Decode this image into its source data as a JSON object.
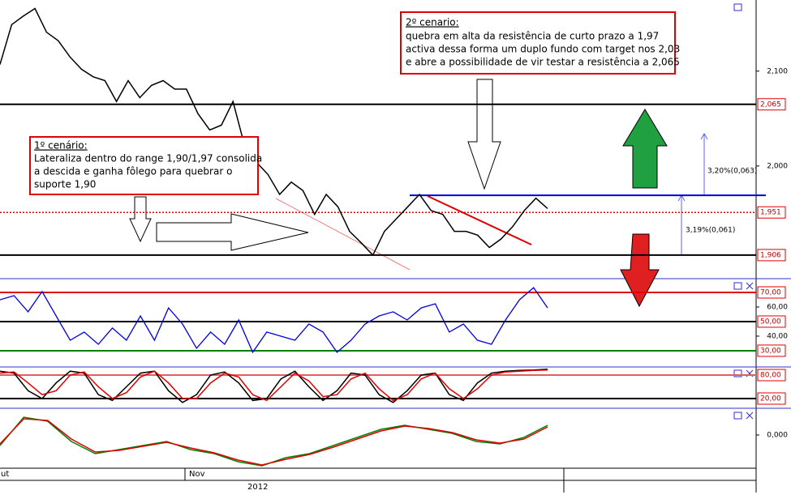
{
  "chart_data": [
    {
      "type": "line",
      "color": "#000000",
      "values": [
        2.107,
        2.149,
        2.158,
        2.166,
        2.141,
        2.132,
        2.115,
        2.102,
        2.094,
        2.09,
        2.068,
        2.09,
        2.072,
        2.085,
        2.09,
        2.081,
        2.081,
        2.055,
        2.038,
        2.043,
        2.068,
        2.021,
        2.004,
        1.991,
        1.97,
        1.983,
        1.974,
        1.949,
        1.97,
        1.957,
        1.931,
        1.919,
        1.906,
        1.931,
        1.944,
        1.957,
        1.97,
        1.953,
        1.949,
        1.931,
        1.931,
        1.927,
        1.914,
        1.923,
        1.936,
        1.953,
        1.966,
        1.955
      ],
      "ylim": [
        1.882,
        2.175
      ],
      "yticks": [
        {
          "value": 2.1,
          "label": "2,100"
        },
        {
          "value": 2.0,
          "label": "2,000"
        }
      ],
      "levels": [
        {
          "value": 2.065,
          "label": "2,065",
          "color": "#000000"
        },
        {
          "value": 1.951,
          "label": "1,951",
          "color": "#e00000"
        },
        {
          "value": 1.906,
          "label": "1,906",
          "color": "#000000"
        }
      ],
      "resistance": 1.969,
      "x_labels": [
        "ut",
        "Nov",
        "2012"
      ],
      "annotations": {
        "scenario1": {
          "title": "1º cenário:",
          "lines": [
            "Lateraliza dentro do range 1,90/1,97 consolida",
            "a descida e ganha fôlego para quebrar o",
            "suporte 1,90"
          ]
        },
        "scenario2": {
          "title": "2º cenario:",
          "lines": [
            "quebra em alta da resistência de curto prazo a 1,97",
            "activa dessa forma um duplo fundo com target nos 2,03",
            "e abre a possibilidade de vir testar a resistência a 2,065"
          ]
        },
        "measure_up": "3,20%(0,063)",
        "measure_down": "3,19%(0,061)"
      }
    },
    {
      "type": "line",
      "color": "#0000e0",
      "values": [
        65,
        67.8,
        56.7,
        70.6,
        53.9,
        37.2,
        42.8,
        34.4,
        45.6,
        37.2,
        53.9,
        37.2,
        59.4,
        48.3,
        31.7,
        42.8,
        34.4,
        51.1,
        28.9,
        42.8,
        40,
        37.2,
        48.3,
        42.8,
        28.9,
        37.2,
        48.3,
        53.9,
        56.7,
        51.1,
        59.4,
        62.2,
        42.8,
        48.3,
        37.2,
        34.4,
        51.1,
        65,
        73.3,
        59.4
      ],
      "ylim": [
        19.4,
        78.9
      ],
      "yticks": [
        {
          "value": 60,
          "label": "60,00"
        },
        {
          "value": 40,
          "label": "40,00"
        }
      ],
      "levels": [
        {
          "value": 70,
          "label": "70,00",
          "color": "#e00000"
        },
        {
          "value": 50,
          "label": "50,00",
          "color": "#000000"
        },
        {
          "value": 30,
          "label": "30,00",
          "color": "#008000"
        }
      ]
    },
    {
      "type": "line",
      "series": [
        {
          "color": "#000000",
          "values": [
            90,
            85,
            40,
            20,
            60,
            90,
            85,
            30,
            15,
            50,
            85,
            90,
            40,
            10,
            30,
            80,
            88,
            60,
            15,
            20,
            70,
            90,
            50,
            15,
            40,
            85,
            80,
            30,
            10,
            40,
            80,
            85,
            30,
            15,
            60,
            85,
            90,
            92,
            93,
            95
          ]
        },
        {
          "color": "#e00000",
          "values": [
            85,
            88,
            60,
            30,
            40,
            80,
            88,
            50,
            20,
            35,
            75,
            90,
            60,
            20,
            20,
            60,
            85,
            75,
            30,
            15,
            50,
            85,
            65,
            25,
            30,
            70,
            85,
            45,
            15,
            30,
            70,
            85,
            45,
            20,
            45,
            80,
            88,
            90,
            92,
            93
          ]
        }
      ],
      "ylim": [
        -2.8,
        96.6
      ],
      "levels": [
        {
          "value": 80,
          "label": "80,00",
          "color": "#e06060"
        },
        {
          "value": 20,
          "label": "20,00",
          "color": "#000000"
        }
      ]
    },
    {
      "type": "line",
      "series": [
        {
          "color": "#008000",
          "values": [
            -0.013,
            0.022,
            0.017,
            -0.008,
            -0.023,
            -0.018,
            -0.013,
            -0.008,
            -0.018,
            -0.023,
            -0.033,
            -0.038,
            -0.028,
            -0.023,
            -0.013,
            -0.003,
            0.007,
            0.012,
            0.007,
            0.002,
            -0.008,
            -0.011,
            -0.003,
            0.012
          ]
        },
        {
          "color": "#e00000",
          "values": [
            -0.011,
            0.02,
            0.018,
            -0.005,
            -0.021,
            -0.019,
            -0.014,
            -0.009,
            -0.016,
            -0.022,
            -0.031,
            -0.037,
            -0.03,
            -0.024,
            -0.015,
            -0.005,
            0.005,
            0.011,
            0.008,
            0.003,
            -0.006,
            -0.01,
            -0.005,
            0.01
          ]
        }
      ],
      "ylim": [
        -0.041,
        0.032
      ],
      "yticks": [
        {
          "value": 0,
          "label": "0,000"
        }
      ]
    }
  ]
}
